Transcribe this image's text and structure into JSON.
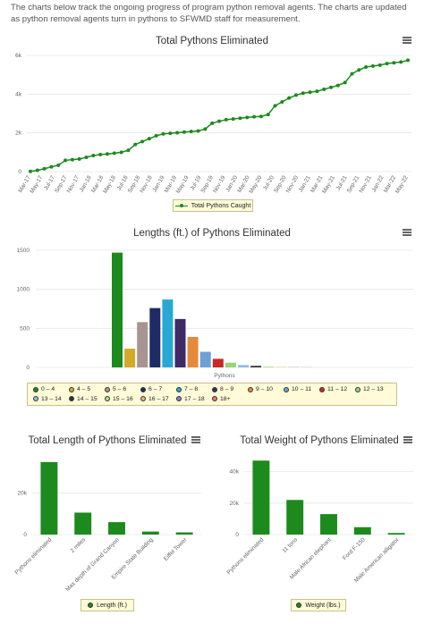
{
  "intro": "The charts below track the ongoing progress of program python removal agents. The charts are updated as python removal agents turn in pythons to SFWMD staff for measurement.",
  "colors": {
    "green": "#1c8a1c",
    "grid": "#e6e6e6",
    "axis": "#ccc"
  },
  "menu_icon": "hamburger-menu-icon",
  "chart_data": [
    {
      "type": "line",
      "title": "Total Pythons Eliminated",
      "x_ticks": [
        "Mar-17",
        "May-17",
        "Jul-17",
        "Sep-17",
        "Nov-17",
        "Jan-18",
        "Mar-18",
        "May-18",
        "Jul-18",
        "Sep-18",
        "Nov-18",
        "Jan-19",
        "Mar-19",
        "May-19",
        "Jul-19",
        "Sep-19",
        "Nov-19",
        "Jan-20",
        "Mar-20",
        "May-20",
        "Jul-20",
        "Sep-20",
        "Nov-20",
        "Jan-21",
        "Mar-21",
        "May-21",
        "Jul-21",
        "Sep-21",
        "Nov-21",
        "Jan-22",
        "Mar-22",
        "May-22"
      ],
      "y_ticks": [
        "0",
        "2k",
        "4k",
        "6k"
      ],
      "ylim": [
        0,
        6000
      ],
      "series": [
        {
          "name": "Total Pythons Caught",
          "values": [
            10,
            70,
            150,
            250,
            330,
            580,
            620,
            650,
            740,
            830,
            880,
            910,
            950,
            1000,
            1100,
            1400,
            1550,
            1700,
            1850,
            1950,
            1980,
            2010,
            2040,
            2070,
            2100,
            2200,
            2500,
            2600,
            2680,
            2720,
            2760,
            2800,
            2830,
            2850,
            2950,
            3400,
            3600,
            3800,
            3950,
            4050,
            4100,
            4150,
            4250,
            4350,
            4450,
            4600,
            5050,
            5250,
            5400,
            5450,
            5500,
            5580,
            5620,
            5660,
            5750
          ]
        }
      ],
      "legend": [
        "Total Pythons Caught"
      ]
    },
    {
      "type": "bar",
      "title": "Lengths (ft.) of Pythons Eliminated",
      "xlabel": "Pythons",
      "y_ticks": [
        "0",
        "500",
        "1000",
        "1500"
      ],
      "ylim": [
        0,
        1500
      ],
      "categories": [
        "0 – 4",
        "4 – 5",
        "5 – 6",
        "6 – 7",
        "7 – 8",
        "8 – 9",
        "9 – 10",
        "10 – 11",
        "11 – 12",
        "12 – 13",
        "13 – 14",
        "14 – 15",
        "15 – 16",
        "16 – 17",
        "17 – 18",
        "18+"
      ],
      "values": [
        1470,
        240,
        580,
        760,
        870,
        620,
        390,
        200,
        110,
        60,
        30,
        20,
        10,
        5,
        3,
        2
      ],
      "colors": [
        "#1c8a1c",
        "#d4a92a",
        "#a89490",
        "#1e2b66",
        "#2aa8d4",
        "#3d2a66",
        "#e58a3a",
        "#6fa0d8",
        "#c8282a",
        "#95d47a",
        "#8fbce0",
        "#333333",
        "#a8e08a",
        "#f0b070",
        "#8a78d8",
        "#f07070"
      ]
    },
    {
      "type": "bar",
      "title": "Total Length of Pythons Eliminated",
      "categories": [
        "Pythons eliminated",
        "2 miles",
        "Max depth of Grand Canyon",
        "Empire State Building",
        "Eiffel Tower"
      ],
      "values": [
        35000,
        10600,
        6000,
        1450,
        1060
      ],
      "y_ticks": [
        "0",
        "20k"
      ],
      "ylim": [
        0,
        38000
      ],
      "legend": [
        "Length (ft.)"
      ]
    },
    {
      "type": "bar",
      "title": "Total Weight of Pythons Eliminated",
      "categories": [
        "Pythons eliminated",
        "11 tons",
        "Male African elephant",
        "Ford F-150",
        "Male American alligator"
      ],
      "values": [
        47000,
        22000,
        13000,
        4700,
        1000
      ],
      "y_ticks": [
        "0",
        "20k",
        "40k"
      ],
      "ylim": [
        0,
        50000
      ],
      "legend": [
        "Weight (lbs.)"
      ]
    }
  ]
}
